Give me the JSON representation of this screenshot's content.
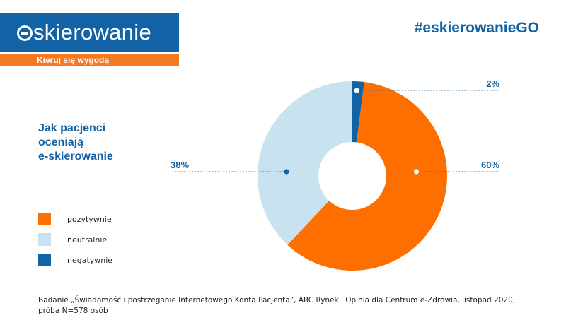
{
  "header": {
    "logo_text": "skierowanie",
    "tagline": "Kieruj się wygodą",
    "hashtag": "#eskierowanieGO"
  },
  "colors": {
    "brand_blue": "#1262a6",
    "brand_orange": "#f47920",
    "neutral_light_blue": "#c8e3ef"
  },
  "chart_data": {
    "type": "pie",
    "variant": "donut",
    "title": "Jak pacjenci\noceniają\ne-skierowanie",
    "categories": [
      "pozytywnie",
      "neutralnie",
      "negatywnie"
    ],
    "values": [
      60,
      38,
      2
    ],
    "value_labels": [
      "60%",
      "38%",
      "2%"
    ],
    "colors": [
      "#ff6f00",
      "#c8e3ef",
      "#1262a6"
    ],
    "legend_position": "left"
  },
  "footnote": "Badanie „Świadomość i postrzeganie Internetowego Konta Pacjenta”, ARC Rynek i Opinia dla Centrum e-Zdrowia, listopad 2020,\npróba N=578 osób"
}
